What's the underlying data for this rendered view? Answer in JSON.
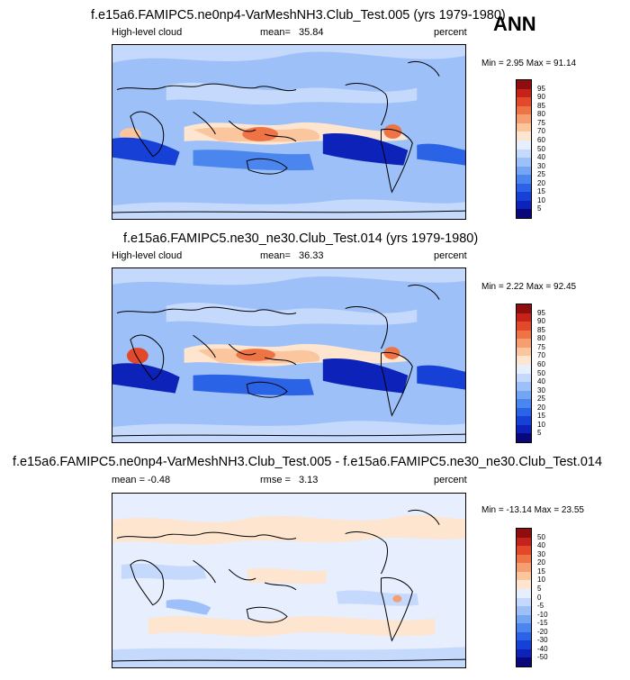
{
  "season": "ANN",
  "panels": [
    {
      "title": "f.e15a6.FAMIPC5.ne0np4-VarMeshNH3.Club_Test.005 (yrs 1979-1980)",
      "left_label": "High-level cloud",
      "mean_label": "mean=",
      "mean_value": "35.84",
      "units": "percent",
      "minmax": "Min =   2.95 Max =  91.14"
    },
    {
      "title": "f.e15a6.FAMIPC5.ne30_ne30.Club_Test.014 (yrs 1979-1980)",
      "left_label": "High-level cloud",
      "mean_label": "mean=",
      "mean_value": "36.33",
      "units": "percent",
      "minmax": "Min =   2.22 Max =  92.45"
    },
    {
      "title": "f.e15a6.FAMIPC5.ne0np4-VarMeshNH3.Club_Test.005 - f.e15a6.FAMIPC5.ne30_ne30.Club_Test.014",
      "left_label": "mean =  -0.48",
      "mean_label": "rmse =",
      "mean_value": "3.13",
      "units": "percent",
      "minmax": "Min = -13.14 Max =  23.55"
    }
  ],
  "chart_data": [
    {
      "type": "heatmap",
      "title": "f.e15a6.FAMIPC5.ne0np4-VarMeshNH3.Club_Test.005 (yrs 1979-1980)",
      "variable": "High-level cloud",
      "units": "percent",
      "mean": 35.84,
      "min": 2.95,
      "max": 91.14,
      "levels": [
        "5",
        "10",
        "15",
        "20",
        "25",
        "30",
        "40",
        "50",
        "60",
        "70",
        "75",
        "80",
        "85",
        "90",
        "95"
      ],
      "colors": [
        "#08087a",
        "#0d22b8",
        "#1740d6",
        "#2a63e6",
        "#4b86ee",
        "#73a5f3",
        "#9cc0f7",
        "#c4d9fb",
        "#e7eefd",
        "#fde5cf",
        "#fbc59e",
        "#f59e72",
        "#ee7446",
        "#e2482a",
        "#c4221a",
        "#8f0d0d"
      ]
    },
    {
      "type": "heatmap",
      "title": "f.e15a6.FAMIPC5.ne30_ne30.Club_Test.014 (yrs 1979-1980)",
      "variable": "High-level cloud",
      "units": "percent",
      "mean": 36.33,
      "min": 2.22,
      "max": 92.45,
      "levels": [
        "5",
        "10",
        "15",
        "20",
        "25",
        "30",
        "40",
        "50",
        "60",
        "70",
        "75",
        "80",
        "85",
        "90",
        "95"
      ],
      "colors": [
        "#08087a",
        "#0d22b8",
        "#1740d6",
        "#2a63e6",
        "#4b86ee",
        "#73a5f3",
        "#9cc0f7",
        "#c4d9fb",
        "#e7eefd",
        "#fde5cf",
        "#fbc59e",
        "#f59e72",
        "#ee7446",
        "#e2482a",
        "#c4221a",
        "#8f0d0d"
      ]
    },
    {
      "type": "heatmap",
      "title": "f.e15a6.FAMIPC5.ne0np4-VarMeshNH3.Club_Test.005 - f.e15a6.FAMIPC5.ne30_ne30.Club_Test.014",
      "units": "percent",
      "mean": -0.48,
      "rmse": 3.13,
      "min": -13.14,
      "max": 23.55,
      "levels": [
        "-50",
        "-40",
        "-30",
        "-20",
        "-15",
        "-10",
        "-5",
        "0",
        "5",
        "10",
        "15",
        "20",
        "30",
        "40",
        "50"
      ],
      "colors": [
        "#08087a",
        "#0d22b8",
        "#1740d6",
        "#2a63e6",
        "#4b86ee",
        "#73a5f3",
        "#9cc0f7",
        "#c4d9fb",
        "#e7eefd",
        "#fde5cf",
        "#fbc59e",
        "#f59e72",
        "#ee7446",
        "#e2482a",
        "#c4221a",
        "#8f0d0d"
      ]
    }
  ]
}
